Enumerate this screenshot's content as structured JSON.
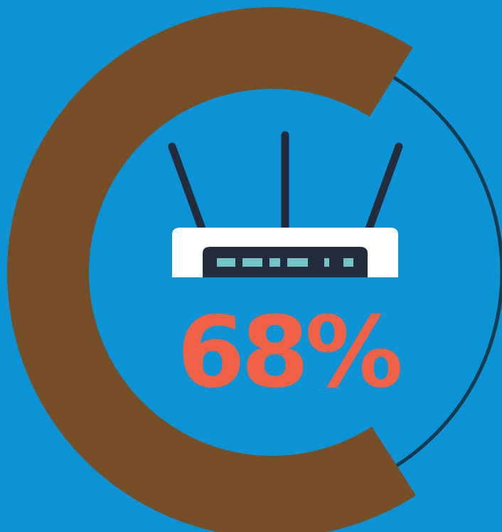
{
  "chart_data": {
    "type": "pie",
    "values": [
      68,
      32
    ],
    "value_label": "68%"
  },
  "colors": {
    "background": "#0b93d5",
    "filled_arc": "#774f27",
    "track_ring": "#163a4f",
    "value_text": "#f06245",
    "router_body": "#ffffff",
    "router_panel": "#232c3d",
    "router_lights": "#74c3c6",
    "antenna": "#232c3d"
  },
  "icon": "wifi-router-icon"
}
